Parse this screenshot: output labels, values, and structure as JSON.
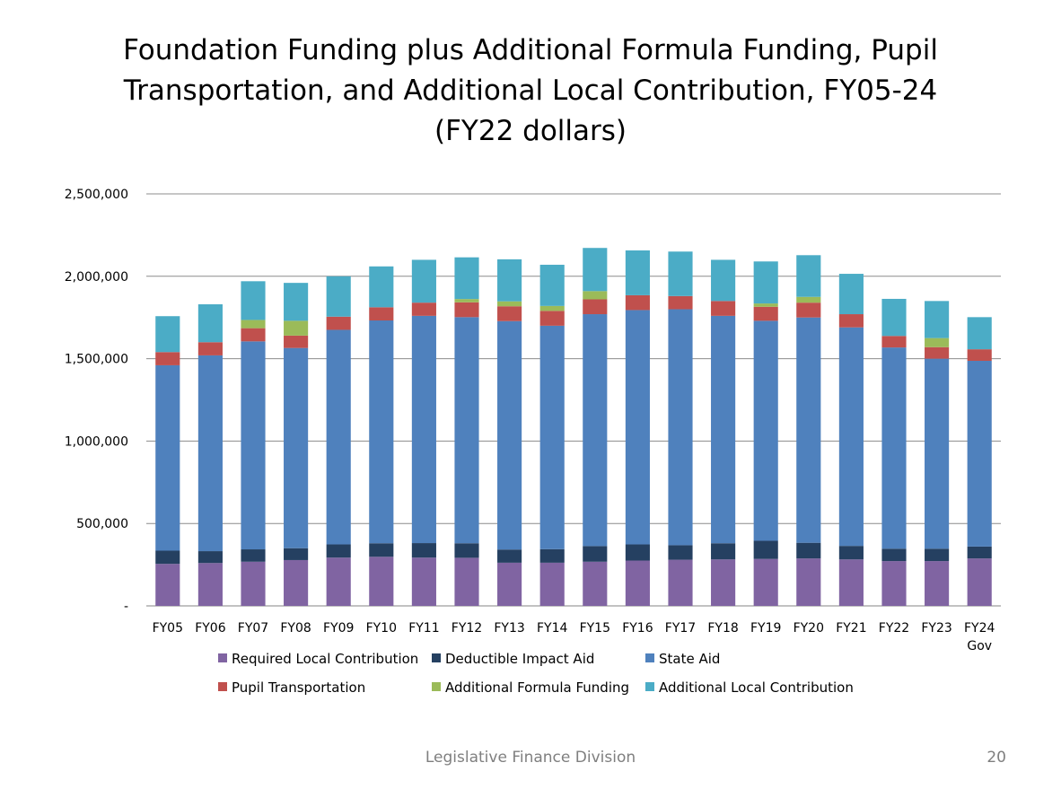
{
  "title_lines": [
    "Foundation Funding plus Additional Formula Funding, Pupil",
    "Transportation, and Additional Local Contribution, FY05-24",
    "(FY22 dollars)"
  ],
  "footer": "Legislative Finance Division",
  "page_number": "20",
  "chart_data": {
    "type": "bar",
    "stacked": true,
    "title": "Foundation Funding plus Additional Formula Funding, Pupil Transportation, and Additional Local Contribution, FY05-24 (FY22 dollars)",
    "categories": [
      "FY05",
      "FY06",
      "FY07",
      "FY08",
      "FY09",
      "FY10",
      "FY11",
      "FY12",
      "FY13",
      "FY14",
      "FY15",
      "FY16",
      "FY17",
      "FY18",
      "FY19",
      "FY20",
      "FY21",
      "FY22",
      "FY23",
      "FY24 Gov"
    ],
    "ylim": [
      0,
      2500000
    ],
    "yticks": [
      0,
      500000,
      1000000,
      1500000,
      2000000,
      2500000
    ],
    "ytick_labels": [
      "-",
      "500,000",
      "1,000,000",
      "1,500,000",
      "2,000,000",
      "2,500,000"
    ],
    "grid": true,
    "legend_position": "bottom",
    "series": [
      {
        "name": "Required Local Contribution",
        "color": "#8064A2",
        "values": [
          255000,
          260000,
          268000,
          278000,
          293000,
          298000,
          293000,
          292000,
          262000,
          262000,
          268000,
          275000,
          280000,
          282000,
          285000,
          288000,
          282000,
          272000,
          272000,
          288000
        ]
      },
      {
        "name": "Deductible Impact Aid",
        "color": "#254061",
        "values": [
          80000,
          72000,
          75000,
          72000,
          80000,
          82000,
          88000,
          88000,
          80000,
          82000,
          95000,
          98000,
          88000,
          98000,
          110000,
          95000,
          82000,
          75000,
          75000,
          72000
        ]
      },
      {
        "name": "State Aid",
        "color": "#4F81BD",
        "values": [
          1125000,
          1188000,
          1262000,
          1215000,
          1302000,
          1352000,
          1379000,
          1372000,
          1386000,
          1356000,
          1407000,
          1422000,
          1432000,
          1380000,
          1335000,
          1367000,
          1326000,
          1221000,
          1153000,
          1127000
        ]
      },
      {
        "name": "Pupil Transportation",
        "color": "#C0504D",
        "values": [
          80000,
          80000,
          80000,
          75000,
          80000,
          80000,
          80000,
          90000,
          90000,
          90000,
          90000,
          90000,
          80000,
          90000,
          85000,
          90000,
          80000,
          70000,
          70000,
          70000
        ]
      },
      {
        "name": "Additional Formula Funding",
        "color": "#9BBB59",
        "values": [
          0,
          0,
          50000,
          90000,
          0,
          0,
          0,
          20000,
          30000,
          30000,
          50000,
          0,
          0,
          0,
          20000,
          35000,
          0,
          0,
          55000,
          0
        ]
      },
      {
        "name": "Additional Local Contribution",
        "color": "#4BACC6",
        "values": [
          218000,
          230000,
          235000,
          230000,
          245000,
          248000,
          260000,
          253000,
          255000,
          250000,
          262000,
          272000,
          270000,
          250000,
          255000,
          253000,
          245000,
          225000,
          225000,
          195000
        ]
      }
    ]
  }
}
